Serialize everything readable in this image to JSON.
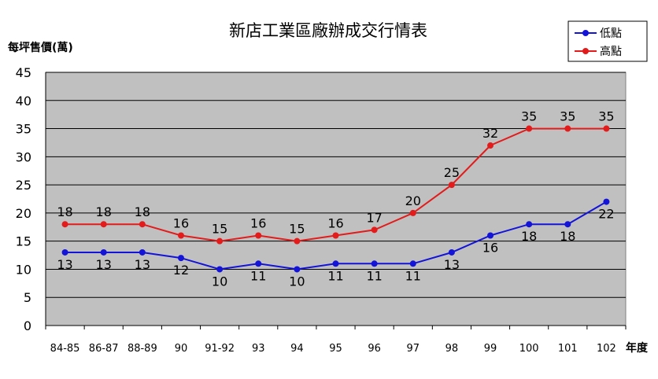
{
  "chart_data": {
    "type": "line",
    "title": "新店工業區廠辦成交行情表",
    "ylabel": "每坪售價(萬)",
    "xlabel": "年度",
    "ylim": [
      0,
      45
    ],
    "yticks": [
      0,
      5,
      10,
      15,
      20,
      25,
      30,
      35,
      40,
      45
    ],
    "categories": [
      "84-85",
      "86-87",
      "88-89",
      "90",
      "91-92",
      "93",
      "94",
      "95",
      "96",
      "97",
      "98",
      "99",
      "100",
      "101",
      "102"
    ],
    "series": [
      {
        "name": "低點",
        "color": "#1414d8",
        "values": [
          13,
          13,
          13,
          12,
          10,
          11,
          10,
          11,
          11,
          11,
          13,
          16,
          18,
          18,
          22
        ],
        "label_position": "below"
      },
      {
        "name": "高點",
        "color": "#e31b1b",
        "values": [
          18,
          18,
          18,
          16,
          15,
          16,
          15,
          16,
          17,
          20,
          25,
          32,
          35,
          35,
          35
        ],
        "label_position": "above"
      }
    ],
    "grid": true,
    "legend_position": "top-right",
    "plot_background": "#c0c0c0"
  }
}
